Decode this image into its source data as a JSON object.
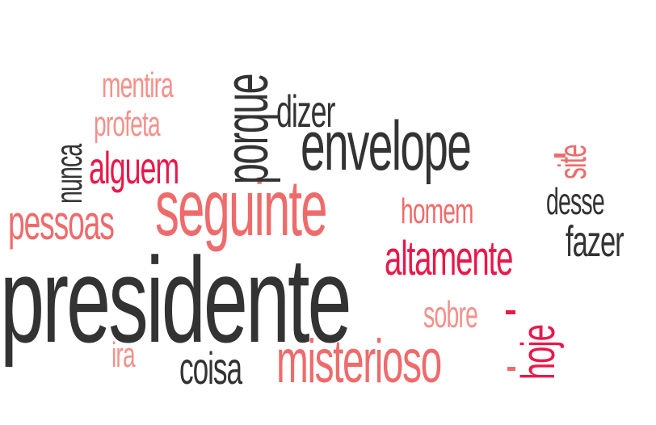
{
  "colors": {
    "dark": "#333333",
    "crimson": "#e8184a",
    "coral": "#ef6b6b",
    "salmon": "#f4908a"
  },
  "words": [
    {
      "text": "presidente",
      "color": "dark",
      "orientation": "horizontal"
    },
    {
      "text": "seguinte",
      "color": "coral",
      "orientation": "horizontal"
    },
    {
      "text": "envelope",
      "color": "dark",
      "orientation": "horizontal"
    },
    {
      "text": "misterioso",
      "color": "coral",
      "orientation": "horizontal"
    },
    {
      "text": "porque",
      "color": "dark",
      "orientation": "vertical"
    },
    {
      "text": "altamente",
      "color": "crimson",
      "orientation": "horizontal"
    },
    {
      "text": "pessoas",
      "color": "coral",
      "orientation": "horizontal"
    },
    {
      "text": "alguem",
      "color": "crimson",
      "orientation": "horizontal"
    },
    {
      "text": "coisa",
      "color": "dark",
      "orientation": "horizontal"
    },
    {
      "text": "fazer",
      "color": "dark",
      "orientation": "horizontal"
    },
    {
      "text": "dizer",
      "color": "dark",
      "orientation": "horizontal"
    },
    {
      "text": "hoje",
      "color": "crimson",
      "orientation": "vertical"
    },
    {
      "text": "homem",
      "color": "coral",
      "orientation": "horizontal"
    },
    {
      "text": "mentira",
      "color": "salmon",
      "orientation": "horizontal"
    },
    {
      "text": "profeta",
      "color": "salmon",
      "orientation": "horizontal"
    },
    {
      "text": "desse",
      "color": "dark",
      "orientation": "horizontal"
    },
    {
      "text": "site",
      "color": "coral",
      "orientation": "vertical"
    },
    {
      "text": "nunca",
      "color": "dark",
      "orientation": "vertical"
    },
    {
      "text": "sobre",
      "color": "salmon",
      "orientation": "horizontal"
    },
    {
      "text": "ira",
      "color": "salmon",
      "orientation": "horizontal"
    }
  ]
}
